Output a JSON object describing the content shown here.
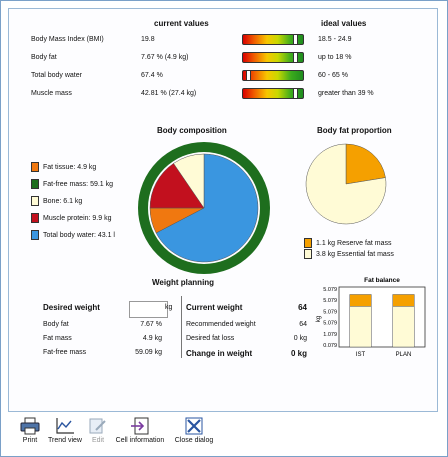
{
  "headers": {
    "current": "current values",
    "ideal": "ideal values"
  },
  "metrics": [
    {
      "label": "Body Mass Index (BMI)",
      "value": "19.8",
      "ideal": "18.5 - 24.9",
      "level": 0.9
    },
    {
      "label": "Body fat",
      "value": "7.67 % (4.9 kg)",
      "ideal": "up to 18 %",
      "level": 0.9
    },
    {
      "label": "Total body water",
      "value": "67.4 %",
      "ideal": "60 - 65 %",
      "level": 0.05
    },
    {
      "label": "Muscle mass",
      "value": "42.81 % (27.4 kg)",
      "ideal": "greater than 39 %",
      "level": 0.9
    }
  ],
  "composition": {
    "title": "Body composition",
    "legend": [
      {
        "label": "Fat tissue: 4.9 kg",
        "color": "#f07810"
      },
      {
        "label": "Fat-free mass: 59.1 kg",
        "color": "#1e6e1e"
      },
      {
        "label": "Bone: 6.1 kg",
        "color": "#fffbd6"
      },
      {
        "label": "Muscle protein: 9.9 kg",
        "color": "#c2101e"
      },
      {
        "label": "Total body water: 43.1 l",
        "color": "#3a96e0"
      }
    ],
    "slices": [
      {
        "name": "Total body water",
        "value": 43.1,
        "color": "#3a96e0"
      },
      {
        "name": "Fat tissue",
        "value": 4.9,
        "color": "#f07810"
      },
      {
        "name": "Muscle protein",
        "value": 9.9,
        "color": "#c2101e"
      },
      {
        "name": "Bone",
        "value": 6.1,
        "color": "#fffbd6"
      }
    ],
    "ring_color": "#1e6e1e"
  },
  "fat_proportion": {
    "title": "Body fat proportion",
    "slices": [
      {
        "name": "Reserve fat mass",
        "value": 1.1,
        "color": "#f5a000"
      },
      {
        "name": "Essential fat mass",
        "value": 3.8,
        "color": "#fffbd6"
      }
    ],
    "legend": [
      {
        "label": "1.1 kg Reserve fat mass",
        "color": "#f5a000"
      },
      {
        "label": "3.8 kg Essential fat mass",
        "color": "#fffbd6"
      }
    ]
  },
  "planning": {
    "title": "Weight planning",
    "desired_weight_label": "Desired weight",
    "desired_weight_value": "",
    "unit": "kg",
    "left_rows": [
      {
        "label": "Body fat",
        "value": "7.67 %"
      },
      {
        "label": "Fat mass",
        "value": "4.9 kg"
      },
      {
        "label": "Fat-free mass",
        "value": "59.09 kg"
      }
    ],
    "current_weight_label": "Current weight",
    "current_weight_value": "64",
    "right_rows": [
      {
        "label": "Recommended weight",
        "value": "64"
      },
      {
        "label": "Desired fat loss",
        "value": "0 kg"
      }
    ],
    "change_label": "Change in weight",
    "change_value": "0 kg"
  },
  "fat_balance": {
    "title": "Fat balance",
    "ylabel": "kg",
    "ytick_labels": [
      "5.079",
      "5.079",
      "5.079",
      "5.079",
      "1.079",
      "0.079"
    ],
    "chart_data": {
      "type": "bar",
      "categories": [
        "IST",
        "PLAN"
      ],
      "series": [
        {
          "values": [
            3.8,
            3.8
          ],
          "color": "#fffbd6"
        },
        {
          "values": [
            1.1,
            1.1
          ],
          "color": "#f5a000"
        }
      ],
      "ylim": [
        0,
        5.6
      ]
    }
  },
  "toolbar": [
    {
      "label": "Print",
      "icon": "printer-icon",
      "enabled": true
    },
    {
      "label": "Trend view",
      "icon": "trend-chart-icon",
      "enabled": true
    },
    {
      "label": "Edit",
      "icon": "edit-icon",
      "enabled": false
    },
    {
      "label": "Cell information",
      "icon": "cell-info-icon",
      "enabled": true
    },
    {
      "label": "Close dialog",
      "icon": "close-dialog-icon",
      "enabled": true
    }
  ]
}
